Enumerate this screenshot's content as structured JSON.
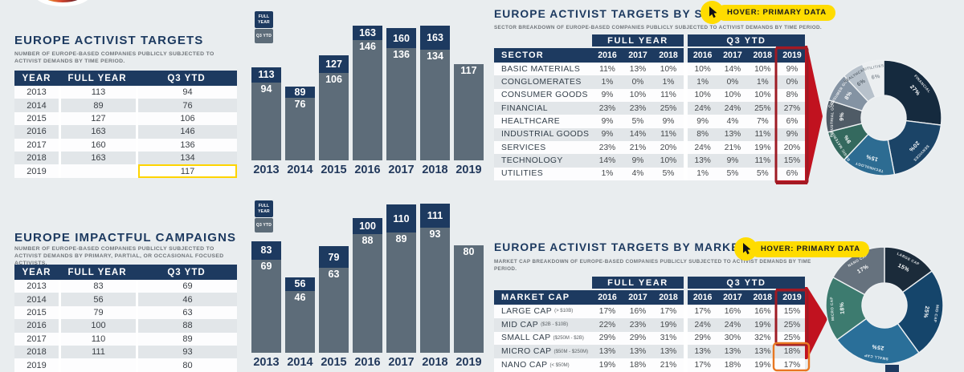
{
  "hover_badge_label": "HOVER: PRIMARY DATA",
  "legend": {
    "full_year": "FULL YEAR",
    "q3_ytd": "Q3 YTD"
  },
  "theme": {
    "navy": "#1d3a60",
    "slate": "#5d6c79",
    "background": "#e9edef",
    "alt_row": "#e2e6e9",
    "red_arrow": "#c1121f",
    "red_border": "#9e1b24",
    "orange_border": "#e87722",
    "yellow_highlight": "#ffd400",
    "badge_yellow": "#ffdc00"
  },
  "chart_data": [
    {
      "id": "targets_table",
      "type": "table",
      "title": "EUROPE ACTIVIST TARGETS",
      "subtitle": "NUMBER OF EUROPE-BASED COMPANIES PUBLICLY SUBJECTED TO ACTIVIST DEMANDS BY TIME PERIOD.",
      "columns": [
        "YEAR",
        "FULL YEAR",
        "Q3 YTD"
      ],
      "rows": [
        [
          "2013",
          "113",
          "94"
        ],
        [
          "2014",
          "89",
          "76"
        ],
        [
          "2015",
          "127",
          "106"
        ],
        [
          "2016",
          "163",
          "146"
        ],
        [
          "2017",
          "160",
          "136"
        ],
        [
          "2018",
          "163",
          "134"
        ],
        [
          "2019",
          "",
          "117"
        ]
      ],
      "highlight": {
        "row": 6,
        "col": 2,
        "style": "yellow-outline"
      }
    },
    {
      "id": "targets_bars",
      "type": "bar",
      "categories": [
        "2013",
        "2014",
        "2015",
        "2016",
        "2017",
        "2018",
        "2019"
      ],
      "series": [
        {
          "name": "FULL YEAR",
          "values": [
            113,
            89,
            127,
            163,
            160,
            163,
            null
          ]
        },
        {
          "name": "Q3 YTD",
          "values": [
            94,
            76,
            106,
            146,
            136,
            134,
            117
          ]
        }
      ],
      "ylim": [
        0,
        170
      ],
      "legend_position": "top-left",
      "grid": false
    },
    {
      "id": "campaigns_table",
      "type": "table",
      "title": "EUROPE IMPACTFUL CAMPAIGNS",
      "subtitle": "NUMBER OF EUROPE-BASED COMPANIES PUBLICLY SUBJECTED TO ACTIVIST DEMANDS BY PRIMARY, PARTIAL, OR OCCASIONAL FOCUSED ACTIVISTS.",
      "columns": [
        "YEAR",
        "FULL YEAR",
        "Q3 YTD"
      ],
      "rows": [
        [
          "2013",
          "83",
          "69"
        ],
        [
          "2014",
          "56",
          "46"
        ],
        [
          "2015",
          "79",
          "63"
        ],
        [
          "2016",
          "100",
          "88"
        ],
        [
          "2017",
          "110",
          "89"
        ],
        [
          "2018",
          "111",
          "93"
        ],
        [
          "2019",
          "",
          "80"
        ]
      ]
    },
    {
      "id": "campaigns_bars",
      "type": "bar",
      "categories": [
        "2013",
        "2014",
        "2015",
        "2016",
        "2017",
        "2018",
        "2019"
      ],
      "series": [
        {
          "name": "FULL YEAR",
          "values": [
            83,
            56,
            79,
            100,
            110,
            111,
            null
          ]
        },
        {
          "name": "Q3 YTD",
          "values": [
            69,
            46,
            63,
            88,
            89,
            93,
            80
          ]
        }
      ],
      "ylim": [
        0,
        115
      ],
      "legend_position": "top-left",
      "grid": false
    },
    {
      "id": "sector_table",
      "type": "table",
      "title": "EUROPE ACTIVIST TARGETS BY SECTOR",
      "subtitle": "SECTOR BREAKDOWN OF EUROPE-BASED COMPANIES PUBLICLY SUBJECTED TO ACTIVIST DEMANDS BY TIME PERIOD.",
      "group_headers": [
        "FULL YEAR",
        "Q3 YTD"
      ],
      "columns": [
        "SECTOR",
        "2016",
        "2017",
        "2018",
        "2016",
        "2017",
        "2018",
        "2019"
      ],
      "highlight_column": "2019",
      "rows": [
        {
          "label": "BASIC MATERIALS",
          "values": [
            "11%",
            "13%",
            "10%",
            "10%",
            "14%",
            "10%",
            "9%"
          ]
        },
        {
          "label": "CONGLOMERATES",
          "values": [
            "1%",
            "0%",
            "1%",
            "1%",
            "0%",
            "1%",
            "0%"
          ]
        },
        {
          "label": "CONSUMER GOODS",
          "values": [
            "9%",
            "10%",
            "11%",
            "10%",
            "10%",
            "10%",
            "8%"
          ]
        },
        {
          "label": "FINANCIAL",
          "values": [
            "23%",
            "23%",
            "25%",
            "24%",
            "24%",
            "25%",
            "27%"
          ]
        },
        {
          "label": "HEALTHCARE",
          "values": [
            "9%",
            "5%",
            "9%",
            "9%",
            "4%",
            "7%",
            "6%"
          ]
        },
        {
          "label": "INDUSTRIAL GOODS",
          "values": [
            "9%",
            "14%",
            "11%",
            "8%",
            "13%",
            "11%",
            "9%"
          ]
        },
        {
          "label": "SERVICES",
          "values": [
            "23%",
            "21%",
            "20%",
            "24%",
            "21%",
            "19%",
            "20%"
          ]
        },
        {
          "label": "TECHNOLOGY",
          "values": [
            "14%",
            "9%",
            "10%",
            "13%",
            "9%",
            "11%",
            "15%"
          ]
        },
        {
          "label": "UTILITIES",
          "values": [
            "1%",
            "4%",
            "5%",
            "1%",
            "5%",
            "5%",
            "6%"
          ]
        }
      ]
    },
    {
      "id": "sector_donut",
      "type": "pie",
      "slices": [
        {
          "label": "FINANCIAL",
          "value": 27,
          "color": "#152a3e"
        },
        {
          "label": "SERVICES",
          "value": 20,
          "color": "#1b4467"
        },
        {
          "label": "TECHNOLOGY",
          "value": 15,
          "color": "#2d6c92"
        },
        {
          "label": "BASIC MATERIALS",
          "value": 9,
          "color": "#34695e"
        },
        {
          "label": "INDUSTRIAL GOODS",
          "value": 9,
          "color": "#4f5b66"
        },
        {
          "label": "CONSUMER GOODS",
          "value": 8,
          "color": "#8493a3"
        },
        {
          "label": "HEALTHCARE",
          "value": 6,
          "color": "#b7c1cb",
          "text_color": "#5b6670"
        },
        {
          "label": "UTILITIES",
          "value": 6,
          "color": "#eceff1",
          "text_color": "#8b949c"
        }
      ]
    },
    {
      "id": "marketcap_table",
      "type": "table",
      "title": "EUROPE ACTIVIST TARGETS BY MARKET CAP",
      "subtitle": "MARKET CAP BREAKDOWN OF EUROPE-BASED COMPANIES PUBLICLY SUBJECTED TO ACTIVIST DEMANDS BY TIME PERIOD.",
      "group_headers": [
        "FULL YEAR",
        "Q3 YTD"
      ],
      "columns": [
        "MARKET CAP",
        "2016",
        "2017",
        "2018",
        "2016",
        "2017",
        "2018",
        "2019"
      ],
      "highlight_column": "2019",
      "highlight_cells": [
        "MICRO CAP",
        "NANO CAP"
      ],
      "rows": [
        {
          "label": "LARGE CAP",
          "sub": "(> $10B)",
          "values": [
            "17%",
            "16%",
            "17%",
            "17%",
            "16%",
            "16%",
            "15%"
          ]
        },
        {
          "label": "MID CAP",
          "sub": "($2B - $10B)",
          "values": [
            "22%",
            "23%",
            "19%",
            "24%",
            "24%",
            "19%",
            "25%"
          ]
        },
        {
          "label": "SMALL CAP",
          "sub": "($250M - $2B)",
          "values": [
            "29%",
            "29%",
            "31%",
            "29%",
            "30%",
            "32%",
            "25%"
          ]
        },
        {
          "label": "MICRO CAP",
          "sub": "($50M - $250M)",
          "values": [
            "13%",
            "13%",
            "13%",
            "13%",
            "13%",
            "13%",
            "18%"
          ]
        },
        {
          "label": "NANO CAP",
          "sub": "(< $50M)",
          "values": [
            "19%",
            "18%",
            "21%",
            "17%",
            "18%",
            "19%",
            "17%"
          ]
        }
      ]
    },
    {
      "id": "marketcap_donut",
      "type": "pie",
      "slices": [
        {
          "label": "LARGE CAP",
          "value": 15,
          "color": "#1b2b3a"
        },
        {
          "label": "MID CAP",
          "value": 25,
          "color": "#15456b"
        },
        {
          "label": "SMALL CAP",
          "value": 25,
          "color": "#2a6f99"
        },
        {
          "label": "MICRO CAP",
          "value": 18,
          "color": "#3d7b6f"
        },
        {
          "label": "NANO CAP",
          "value": 17,
          "color": "#66727e"
        }
      ]
    }
  ]
}
